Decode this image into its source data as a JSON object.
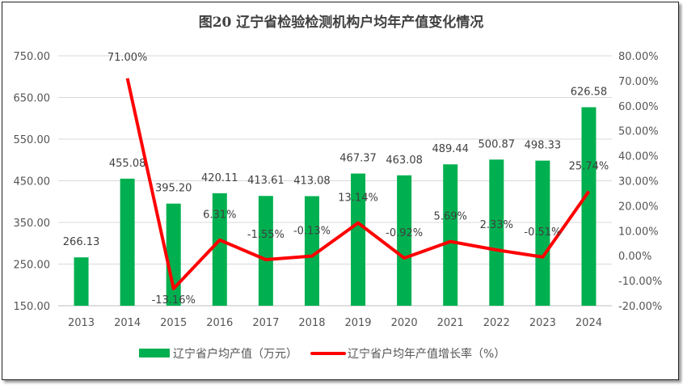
{
  "chart_data": {
    "type": "bar+line",
    "title": "图20  辽宁省检验检测机构户均年产值变化情况",
    "categories": [
      "2013",
      "2014",
      "2015",
      "2016",
      "2017",
      "2018",
      "2019",
      "2020",
      "2021",
      "2022",
      "2023",
      "2024"
    ],
    "series": [
      {
        "name": "辽宁省户均产值（万元）",
        "type": "bar",
        "axis": "left",
        "color": "#00B050",
        "values": [
          266.13,
          455.08,
          395.2,
          420.11,
          413.61,
          413.08,
          467.37,
          463.08,
          489.44,
          500.87,
          498.33,
          626.58
        ],
        "labels": [
          "266.13",
          "455.08",
          "395.20",
          "420.11",
          "413.61",
          "413.08",
          "467.37",
          "463.08",
          "489.44",
          "500.87",
          "498.33",
          "626.58"
        ]
      },
      {
        "name": "辽宁省户均年产值增长率（%）",
        "type": "line",
        "axis": "right",
        "color": "#FF0000",
        "values": [
          null,
          71.0,
          -13.16,
          6.31,
          -1.55,
          -0.13,
          13.14,
          -0.92,
          5.69,
          2.33,
          -0.51,
          25.74
        ],
        "labels": [
          "",
          "71.00%",
          "-13.16%",
          "6.31%",
          "-1.55%",
          "-0.13%",
          "13.14%",
          "-0.92%",
          "5.69%",
          "2.33%",
          "-0.51%",
          "25.74%"
        ]
      }
    ],
    "y_left": {
      "range": [
        150,
        750
      ],
      "ticks": [
        "150.00",
        "250.00",
        "350.00",
        "450.00",
        "550.00",
        "650.00",
        "750.00"
      ]
    },
    "y_right": {
      "range": [
        -20,
        80
      ],
      "ticks": [
        "-20.00%",
        "-10.00%",
        "0.00%",
        "10.00%",
        "20.00%",
        "30.00%",
        "40.00%",
        "50.00%",
        "60.00%",
        "70.00%",
        "80.00%"
      ]
    },
    "grid": true,
    "legend": "bottom"
  }
}
